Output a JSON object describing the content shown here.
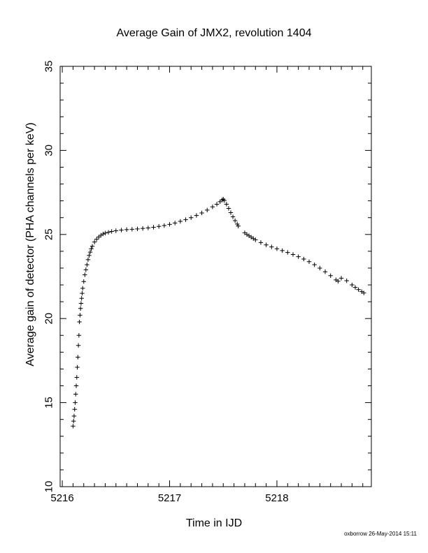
{
  "chart_data": {
    "type": "scatter",
    "title": "Average Gain of JMX2, revolution 1404",
    "xlabel": "Time in IJD",
    "ylabel": "Average gain of detector (PHA channels per keV)",
    "xlim": [
      5215.98,
      5218.88
    ],
    "ylim": [
      10,
      35
    ],
    "xticks": [
      5216,
      5217,
      5218
    ],
    "xtick_labels": [
      "5216",
      "5217",
      "5218"
    ],
    "yticks": [
      10,
      15,
      20,
      25,
      30,
      35
    ],
    "ytick_labels": [
      "10",
      "15",
      "20",
      "25",
      "30",
      "35"
    ],
    "grid": false,
    "marker": "+",
    "color": "#000000",
    "series": [
      {
        "points": [
          [
            5216.1,
            13.6
          ],
          [
            5216.105,
            13.9
          ],
          [
            5216.11,
            14.2
          ],
          [
            5216.115,
            14.6
          ],
          [
            5216.12,
            15.0
          ],
          [
            5216.125,
            15.5
          ],
          [
            5216.13,
            16.0
          ],
          [
            5216.135,
            16.5
          ],
          [
            5216.14,
            17.1
          ],
          [
            5216.145,
            17.7
          ],
          [
            5216.15,
            18.4
          ],
          [
            5216.155,
            19.0
          ],
          [
            5216.16,
            19.8
          ],
          [
            5216.165,
            20.2
          ],
          [
            5216.17,
            20.6
          ],
          [
            5216.175,
            20.9
          ],
          [
            5216.18,
            21.2
          ],
          [
            5216.185,
            21.5
          ],
          [
            5216.19,
            21.8
          ],
          [
            5216.2,
            22.2
          ],
          [
            5216.21,
            22.6
          ],
          [
            5216.22,
            22.9
          ],
          [
            5216.23,
            23.2
          ],
          [
            5216.24,
            23.5
          ],
          [
            5216.25,
            23.75
          ],
          [
            5216.26,
            23.95
          ],
          [
            5216.27,
            24.15
          ],
          [
            5216.28,
            24.3
          ],
          [
            5216.3,
            24.55
          ],
          [
            5216.32,
            24.72
          ],
          [
            5216.34,
            24.85
          ],
          [
            5216.36,
            24.95
          ],
          [
            5216.38,
            25.03
          ],
          [
            5216.4,
            25.08
          ],
          [
            5216.43,
            25.13
          ],
          [
            5216.46,
            25.18
          ],
          [
            5216.5,
            25.22
          ],
          [
            5216.55,
            25.26
          ],
          [
            5216.6,
            25.29
          ],
          [
            5216.65,
            25.31
          ],
          [
            5216.7,
            25.33
          ],
          [
            5216.75,
            25.36
          ],
          [
            5216.8,
            25.39
          ],
          [
            5216.85,
            25.43
          ],
          [
            5216.9,
            25.48
          ],
          [
            5216.95,
            25.53
          ],
          [
            5217.0,
            25.6
          ],
          [
            5217.05,
            25.68
          ],
          [
            5217.1,
            25.78
          ],
          [
            5217.15,
            25.88
          ],
          [
            5217.2,
            26.0
          ],
          [
            5217.25,
            26.13
          ],
          [
            5217.3,
            26.28
          ],
          [
            5217.35,
            26.45
          ],
          [
            5217.4,
            26.64
          ],
          [
            5217.44,
            26.8
          ],
          [
            5217.47,
            26.95
          ],
          [
            5217.49,
            27.05
          ],
          [
            5217.5,
            27.1
          ],
          [
            5217.51,
            27.02
          ],
          [
            5217.53,
            26.8
          ],
          [
            5217.55,
            26.55
          ],
          [
            5217.57,
            26.3
          ],
          [
            5217.59,
            26.05
          ],
          [
            5217.61,
            25.82
          ],
          [
            5217.63,
            25.62
          ],
          [
            5217.64,
            25.5
          ],
          [
            5217.7,
            25.1
          ],
          [
            5217.72,
            25.0
          ],
          [
            5217.74,
            24.92
          ],
          [
            5217.76,
            24.84
          ],
          [
            5217.78,
            24.76
          ],
          [
            5217.8,
            24.68
          ],
          [
            5217.85,
            24.52
          ],
          [
            5217.9,
            24.38
          ],
          [
            5217.95,
            24.26
          ],
          [
            5218.0,
            24.15
          ],
          [
            5218.05,
            24.04
          ],
          [
            5218.1,
            23.93
          ],
          [
            5218.15,
            23.81
          ],
          [
            5218.2,
            23.68
          ],
          [
            5218.25,
            23.54
          ],
          [
            5218.3,
            23.38
          ],
          [
            5218.35,
            23.2
          ],
          [
            5218.4,
            23.0
          ],
          [
            5218.45,
            22.78
          ],
          [
            5218.5,
            22.55
          ],
          [
            5218.55,
            22.3
          ],
          [
            5218.57,
            22.22
          ],
          [
            5218.6,
            22.4
          ],
          [
            5218.65,
            22.25
          ],
          [
            5218.7,
            22.0
          ],
          [
            5218.73,
            21.85
          ],
          [
            5218.76,
            21.72
          ],
          [
            5218.79,
            21.6
          ],
          [
            5218.81,
            21.52
          ]
        ]
      }
    ]
  },
  "footer": "oxborrow 26-May-2014 15:11"
}
